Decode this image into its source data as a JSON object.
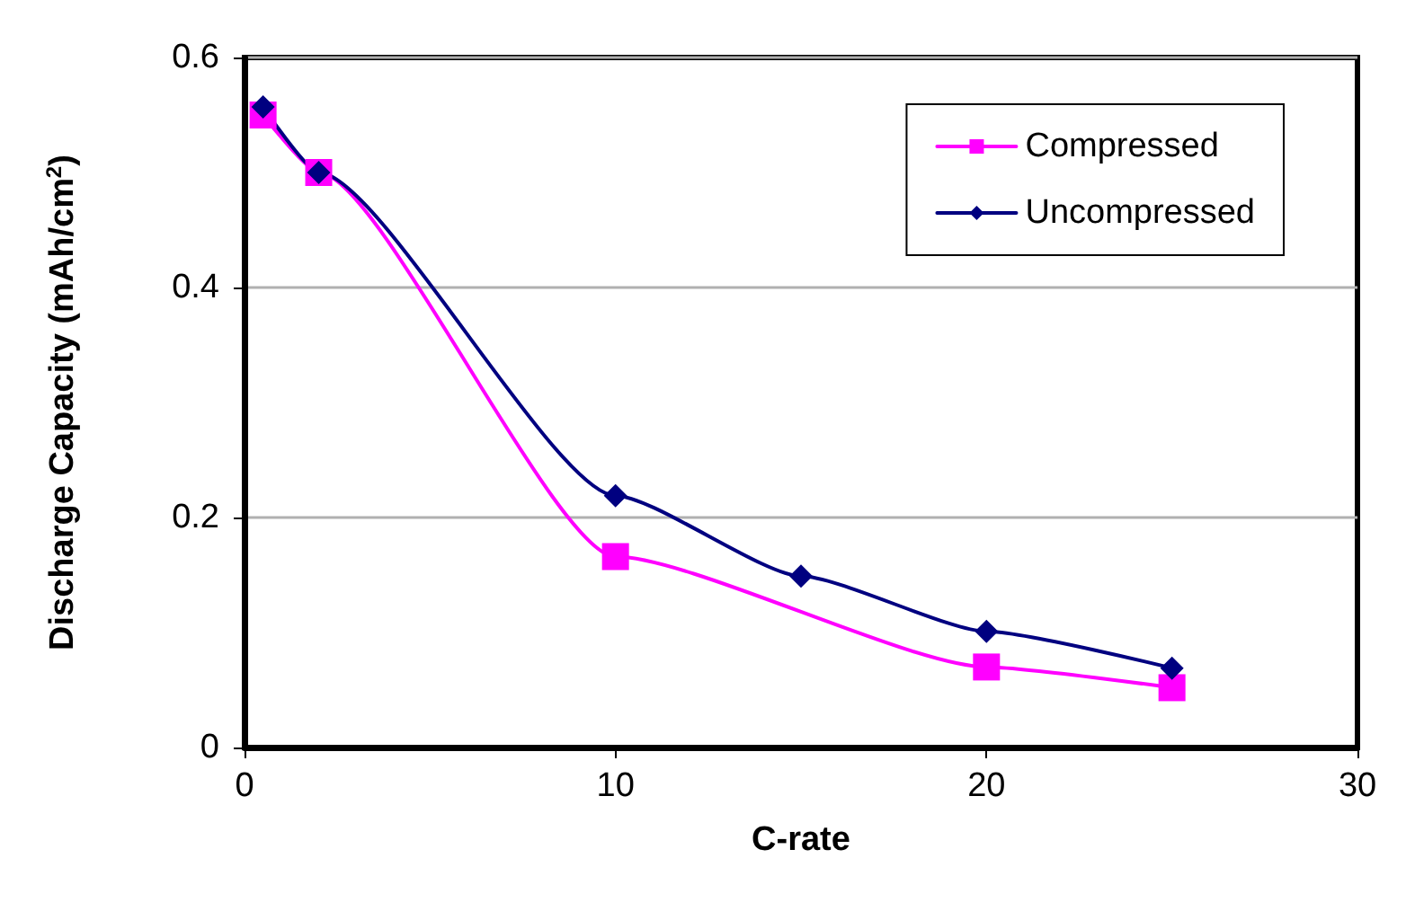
{
  "chart_data": {
    "type": "line",
    "xlabel": "C-rate",
    "ylabel": "Discharge Capacity (mAh/cm$^{2}$)",
    "series": [
      {
        "name": "Compressed",
        "color": "#ff00ff",
        "marker": "square",
        "x": [
          0.5,
          2,
          10,
          20,
          25
        ],
        "values": [
          0.55,
          0.5,
          0.166,
          0.07,
          0.052
        ]
      },
      {
        "name": "Uncompressed",
        "color": "#000080",
        "marker": "diamond",
        "x": [
          0.5,
          2,
          10,
          15,
          20,
          25
        ],
        "values": [
          0.557,
          0.5,
          0.219,
          0.149,
          0.101,
          0.069
        ]
      }
    ],
    "xlim": [
      0,
      30
    ],
    "xticks": [
      0,
      10,
      20,
      30
    ],
    "ylim": [
      0,
      0.6
    ],
    "yticks": [
      0,
      0.2,
      0.4,
      0.6
    ],
    "grid": "y",
    "legend": "top right"
  }
}
